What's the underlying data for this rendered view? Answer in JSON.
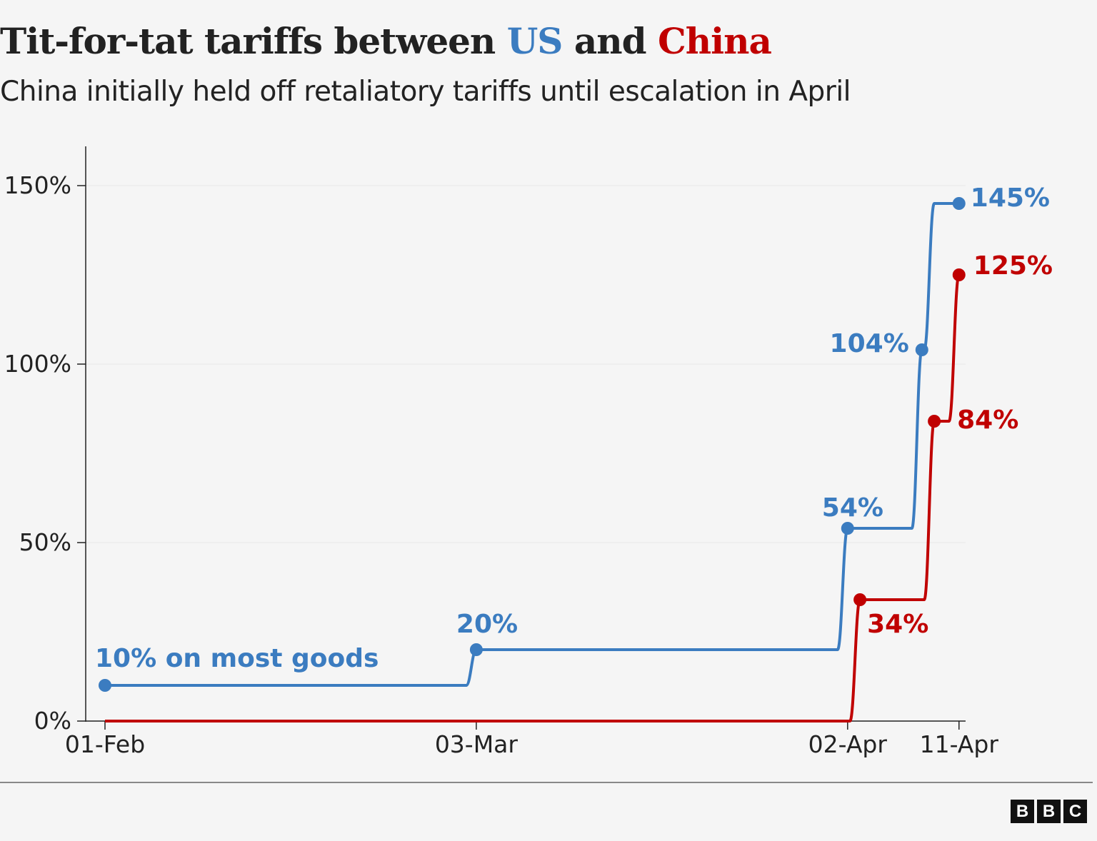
{
  "title": {
    "part1": "Tit-for-tat tariffs between ",
    "us": "US",
    "part2": " and ",
    "china": "China"
  },
  "subtitle": "China initially held off retaliatory tariffs until escalation in April",
  "logo": "BBC",
  "chart_data": {
    "type": "line",
    "title": "Tit-for-tat tariffs between US and China",
    "subtitle": "China initially held off retaliatory tariffs until escalation in April",
    "xlabel": "",
    "ylabel": "",
    "ylim": [
      0,
      150
    ],
    "xlim": [
      "01-Feb",
      "11-Apr"
    ],
    "y_ticks": [
      "0%",
      "50%",
      "100%",
      "150%"
    ],
    "y_tick_values": [
      0,
      50,
      100,
      150
    ],
    "x_ticks": [
      "01-Feb",
      "03-Mar",
      "02-Apr",
      "11-Apr"
    ],
    "grid": true,
    "line_shape": "step",
    "series": [
      {
        "name": "US",
        "color": "#3b7cc0",
        "points": [
          {
            "x": "01-Feb",
            "y": 10,
            "marker": true,
            "label": "10% on most goods"
          },
          {
            "x": "03-Mar",
            "y": 20,
            "marker": true,
            "label": "20%"
          },
          {
            "x": "02-Apr",
            "y": 54,
            "marker": true,
            "label": "54%"
          },
          {
            "x": "08-Apr",
            "y": 104,
            "marker": true,
            "label": "104%"
          },
          {
            "x": "09-Apr",
            "y": 145,
            "marker": false,
            "label": ""
          },
          {
            "x": "11-Apr",
            "y": 145,
            "marker": true,
            "label": "145%"
          }
        ]
      },
      {
        "name": "China",
        "color": "#c00000",
        "points": [
          {
            "x": "01-Feb",
            "y": 0,
            "marker": false,
            "label": ""
          },
          {
            "x": "02-Apr",
            "y": 0,
            "marker": false,
            "label": ""
          },
          {
            "x": "03-Apr",
            "y": 34,
            "marker": true,
            "label": "34%"
          },
          {
            "x": "09-Apr",
            "y": 84,
            "marker": true,
            "label": "84%"
          },
          {
            "x": "11-Apr",
            "y": 125,
            "marker": true,
            "label": "125%"
          }
        ]
      }
    ]
  }
}
